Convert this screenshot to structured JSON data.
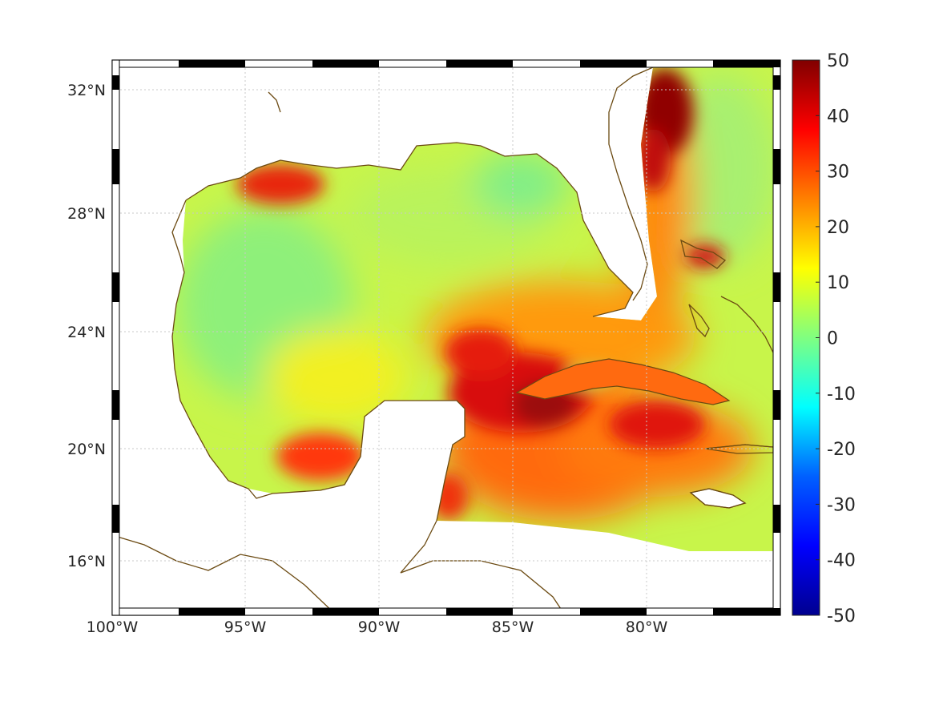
{
  "map": {
    "lon_range": [
      -100,
      -75
    ],
    "lat_range": [
      14.2,
      33
    ],
    "x_tick_labels": [
      "100°W",
      "95°W",
      "90°W",
      "85°W",
      "80°W"
    ],
    "x_tick_values": [
      -100,
      -95,
      -90,
      -85,
      -80
    ],
    "y_tick_labels": [
      "32°N",
      "28°N",
      "24°N",
      "20°N",
      "16°N"
    ],
    "y_tick_values": [
      32,
      28,
      24,
      20,
      16
    ],
    "grid": "dotted",
    "frame": "black-white alternating",
    "coastline_color": "#6b4a12"
  },
  "colorbar": {
    "min": -50,
    "max": 50,
    "tick_labels": [
      "50",
      "40",
      "30",
      "20",
      "10",
      "0",
      "-10",
      "-20",
      "-30",
      "-40",
      "-50"
    ],
    "tick_values": [
      50,
      40,
      30,
      20,
      10,
      0,
      -10,
      -20,
      -30,
      -40,
      -50
    ],
    "colormap": "jet",
    "placement": "right"
  },
  "colors": {
    "jet": [
      "#00008f",
      "#0000ff",
      "#0080ff",
      "#00ffff",
      "#80ff80",
      "#ffff00",
      "#ff8000",
      "#ff0000",
      "#800000"
    ]
  }
}
